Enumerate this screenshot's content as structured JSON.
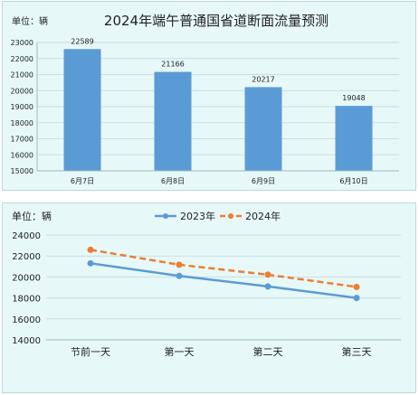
{
  "chart_data": [
    {
      "type": "bar",
      "title": "2024年端午普通国省道断面流量预测",
      "unit_label": "单位：辆",
      "categories": [
        "6月7日",
        "6月8日",
        "6月9日",
        "6月10日"
      ],
      "values": [
        22589,
        21166,
        20217,
        19048
      ],
      "data_labels": [
        "22589",
        "21166",
        "20217",
        "19048"
      ],
      "ylim": [
        15000,
        23000
      ],
      "yticks": [
        15000,
        16000,
        17000,
        18000,
        19000,
        20000,
        21000,
        22000,
        23000
      ],
      "grid": true,
      "colors": {
        "bar": "#5b9bd5"
      }
    },
    {
      "type": "line",
      "unit_label": "单位：辆",
      "categories": [
        "节前一天",
        "第一天",
        "第二天",
        "第三天"
      ],
      "series": [
        {
          "name": "2023年",
          "values": [
            21300,
            20100,
            19100,
            18000
          ],
          "color": "#5b9bd5",
          "style": "solid"
        },
        {
          "name": "2024年",
          "values": [
            22589,
            21166,
            20217,
            19048
          ],
          "color": "#ed7d31",
          "style": "dashed"
        }
      ],
      "ylim": [
        14000,
        24000
      ],
      "yticks": [
        14000,
        16000,
        18000,
        20000,
        22000,
        24000
      ],
      "grid": true,
      "legend_position": "top"
    }
  ]
}
